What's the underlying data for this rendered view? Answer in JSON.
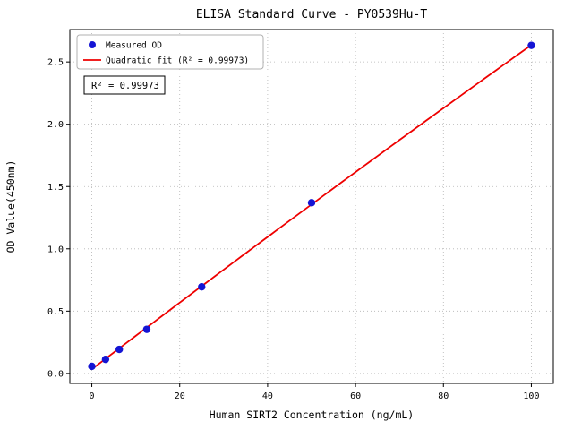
{
  "chart_data": {
    "type": "scatter",
    "title": "ELISA Standard Curve - PY0539Hu-T",
    "xlabel": "Human SIRT2 Concentration (ng/mL)",
    "ylabel": "OD Value(450nm)",
    "x": [
      0,
      3.125,
      6.25,
      12.5,
      25,
      50,
      100
    ],
    "y": [
      0.057,
      0.113,
      0.193,
      0.354,
      0.695,
      1.37,
      2.633
    ],
    "fit_type": "quadratic",
    "annotation": "R² = 0.99973",
    "legend": [
      {
        "label": "Measured OD",
        "marker": "dot"
      },
      {
        "label": "Quadratic fit (R² = 0.99973)",
        "marker": "line"
      }
    ],
    "legend_position": "upper left",
    "xticks": [
      0,
      20,
      40,
      60,
      80,
      100
    ],
    "yticks": [
      "0.0",
      "0.5",
      "1.0",
      "1.5",
      "2.0",
      "2.5"
    ],
    "xlim": [
      -5,
      105
    ],
    "ylim": [
      -0.08,
      2.76
    ],
    "grid": true,
    "colors": {
      "points": "#1414d4",
      "fit_line": "#ee0000",
      "grid": "#b3b3b3",
      "background": "#ffffff"
    }
  }
}
